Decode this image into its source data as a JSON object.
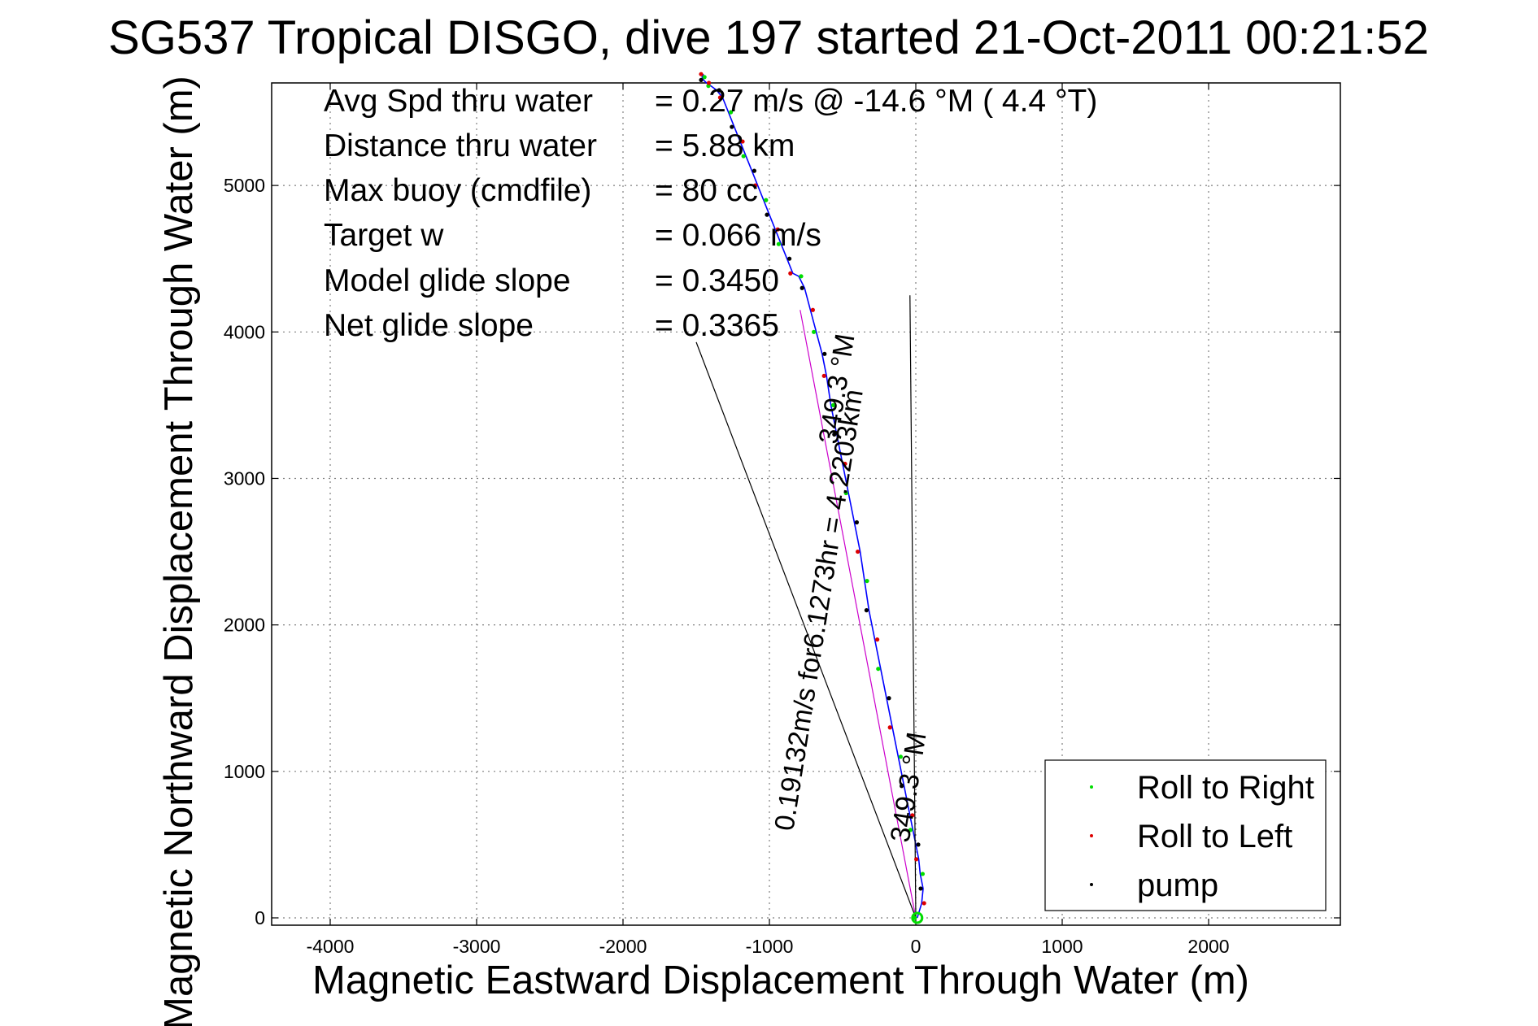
{
  "chart_data": {
    "type": "line",
    "title": "SG537 Tropical DISGO, dive 197 started 21-Oct-2011 00:21:52",
    "xlabel": "Magnetic Eastward Displacement Through Water (m)",
    "ylabel": "Magnetic Northward Displacement Through Water (m)",
    "xlim": [
      -4400,
      2900
    ],
    "ylim": [
      -50,
      5700
    ],
    "xticks": [
      -4000,
      -3000,
      -2000,
      -1000,
      0,
      1000,
      2000
    ],
    "yticks": [
      0,
      1000,
      2000,
      3000,
      4000,
      5000
    ],
    "grid": true,
    "legend_position": "bottom-right",
    "legend": [
      {
        "label": "Roll to Right",
        "color": "#00dd00"
      },
      {
        "label": "Roll to Left",
        "color": "#dd0000"
      },
      {
        "label": "pump",
        "color": "#000000"
      }
    ],
    "stats": [
      {
        "label": "Avg Spd thru water",
        "value": "=  0.27 m/s @ -14.6 °M (  4.4 °T)"
      },
      {
        "label": "Distance thru water",
        "value": "=  5.88 km"
      },
      {
        "label": "Max buoy (cmdfile)",
        "value": "= 80 cc"
      },
      {
        "label": "Target w",
        "value": "= 0.066 m/s"
      },
      {
        "label": "Model glide slope",
        "value": "= 0.3450"
      },
      {
        "label": "Net glide slope",
        "value": "= 0.3365"
      }
    ],
    "annotations": [
      {
        "text": "0.19132m/s for6.1273hr = 4.2203km",
        "angle_deg": -81
      },
      {
        "text": "349.3 °M",
        "angle_deg": -81
      },
      {
        "text": "349.3 °M",
        "angle_deg": -81
      }
    ],
    "series": [
      {
        "color": "#0000ff",
        "x": [
          10,
          40,
          50,
          30,
          20,
          0,
          -20,
          -40,
          -80,
          -120,
          -160,
          -200,
          -240,
          -280,
          -320,
          -350,
          -380,
          -420,
          -460,
          -500,
          -540,
          -580,
          -610,
          -640,
          -680,
          -720,
          -760,
          -800,
          -840,
          -880,
          -920,
          -960,
          -1000,
          -1040,
          -1080,
          -1120,
          -1160,
          -1200,
          -1240,
          -1280,
          -1320,
          -1360,
          -1400,
          -1430,
          -1450,
          -1460,
          -1450
        ],
        "y": [
          0,
          100,
          200,
          300,
          400,
          500,
          600,
          700,
          900,
          1100,
          1300,
          1500,
          1700,
          1900,
          2100,
          2300,
          2500,
          2700,
          2900,
          3100,
          3300,
          3500,
          3700,
          3850,
          4000,
          4150,
          4300,
          4380,
          4400,
          4500,
          4600,
          4700,
          4800,
          4900,
          5000,
          5100,
          5200,
          5300,
          5400,
          5500,
          5600,
          5650,
          5680,
          5700,
          5720,
          5740,
          5760
        ]
      },
      {
        "color": "#cc00cc",
        "x": [
          0,
          -790
        ],
        "y": [
          0,
          4150
        ]
      },
      {
        "color": "#000000",
        "x": [
          0,
          -1500
        ],
        "y": [
          0,
          3930
        ]
      },
      {
        "color": "#000000",
        "x": [
          0,
          -40
        ],
        "y": [
          0,
          4250
        ]
      }
    ]
  }
}
